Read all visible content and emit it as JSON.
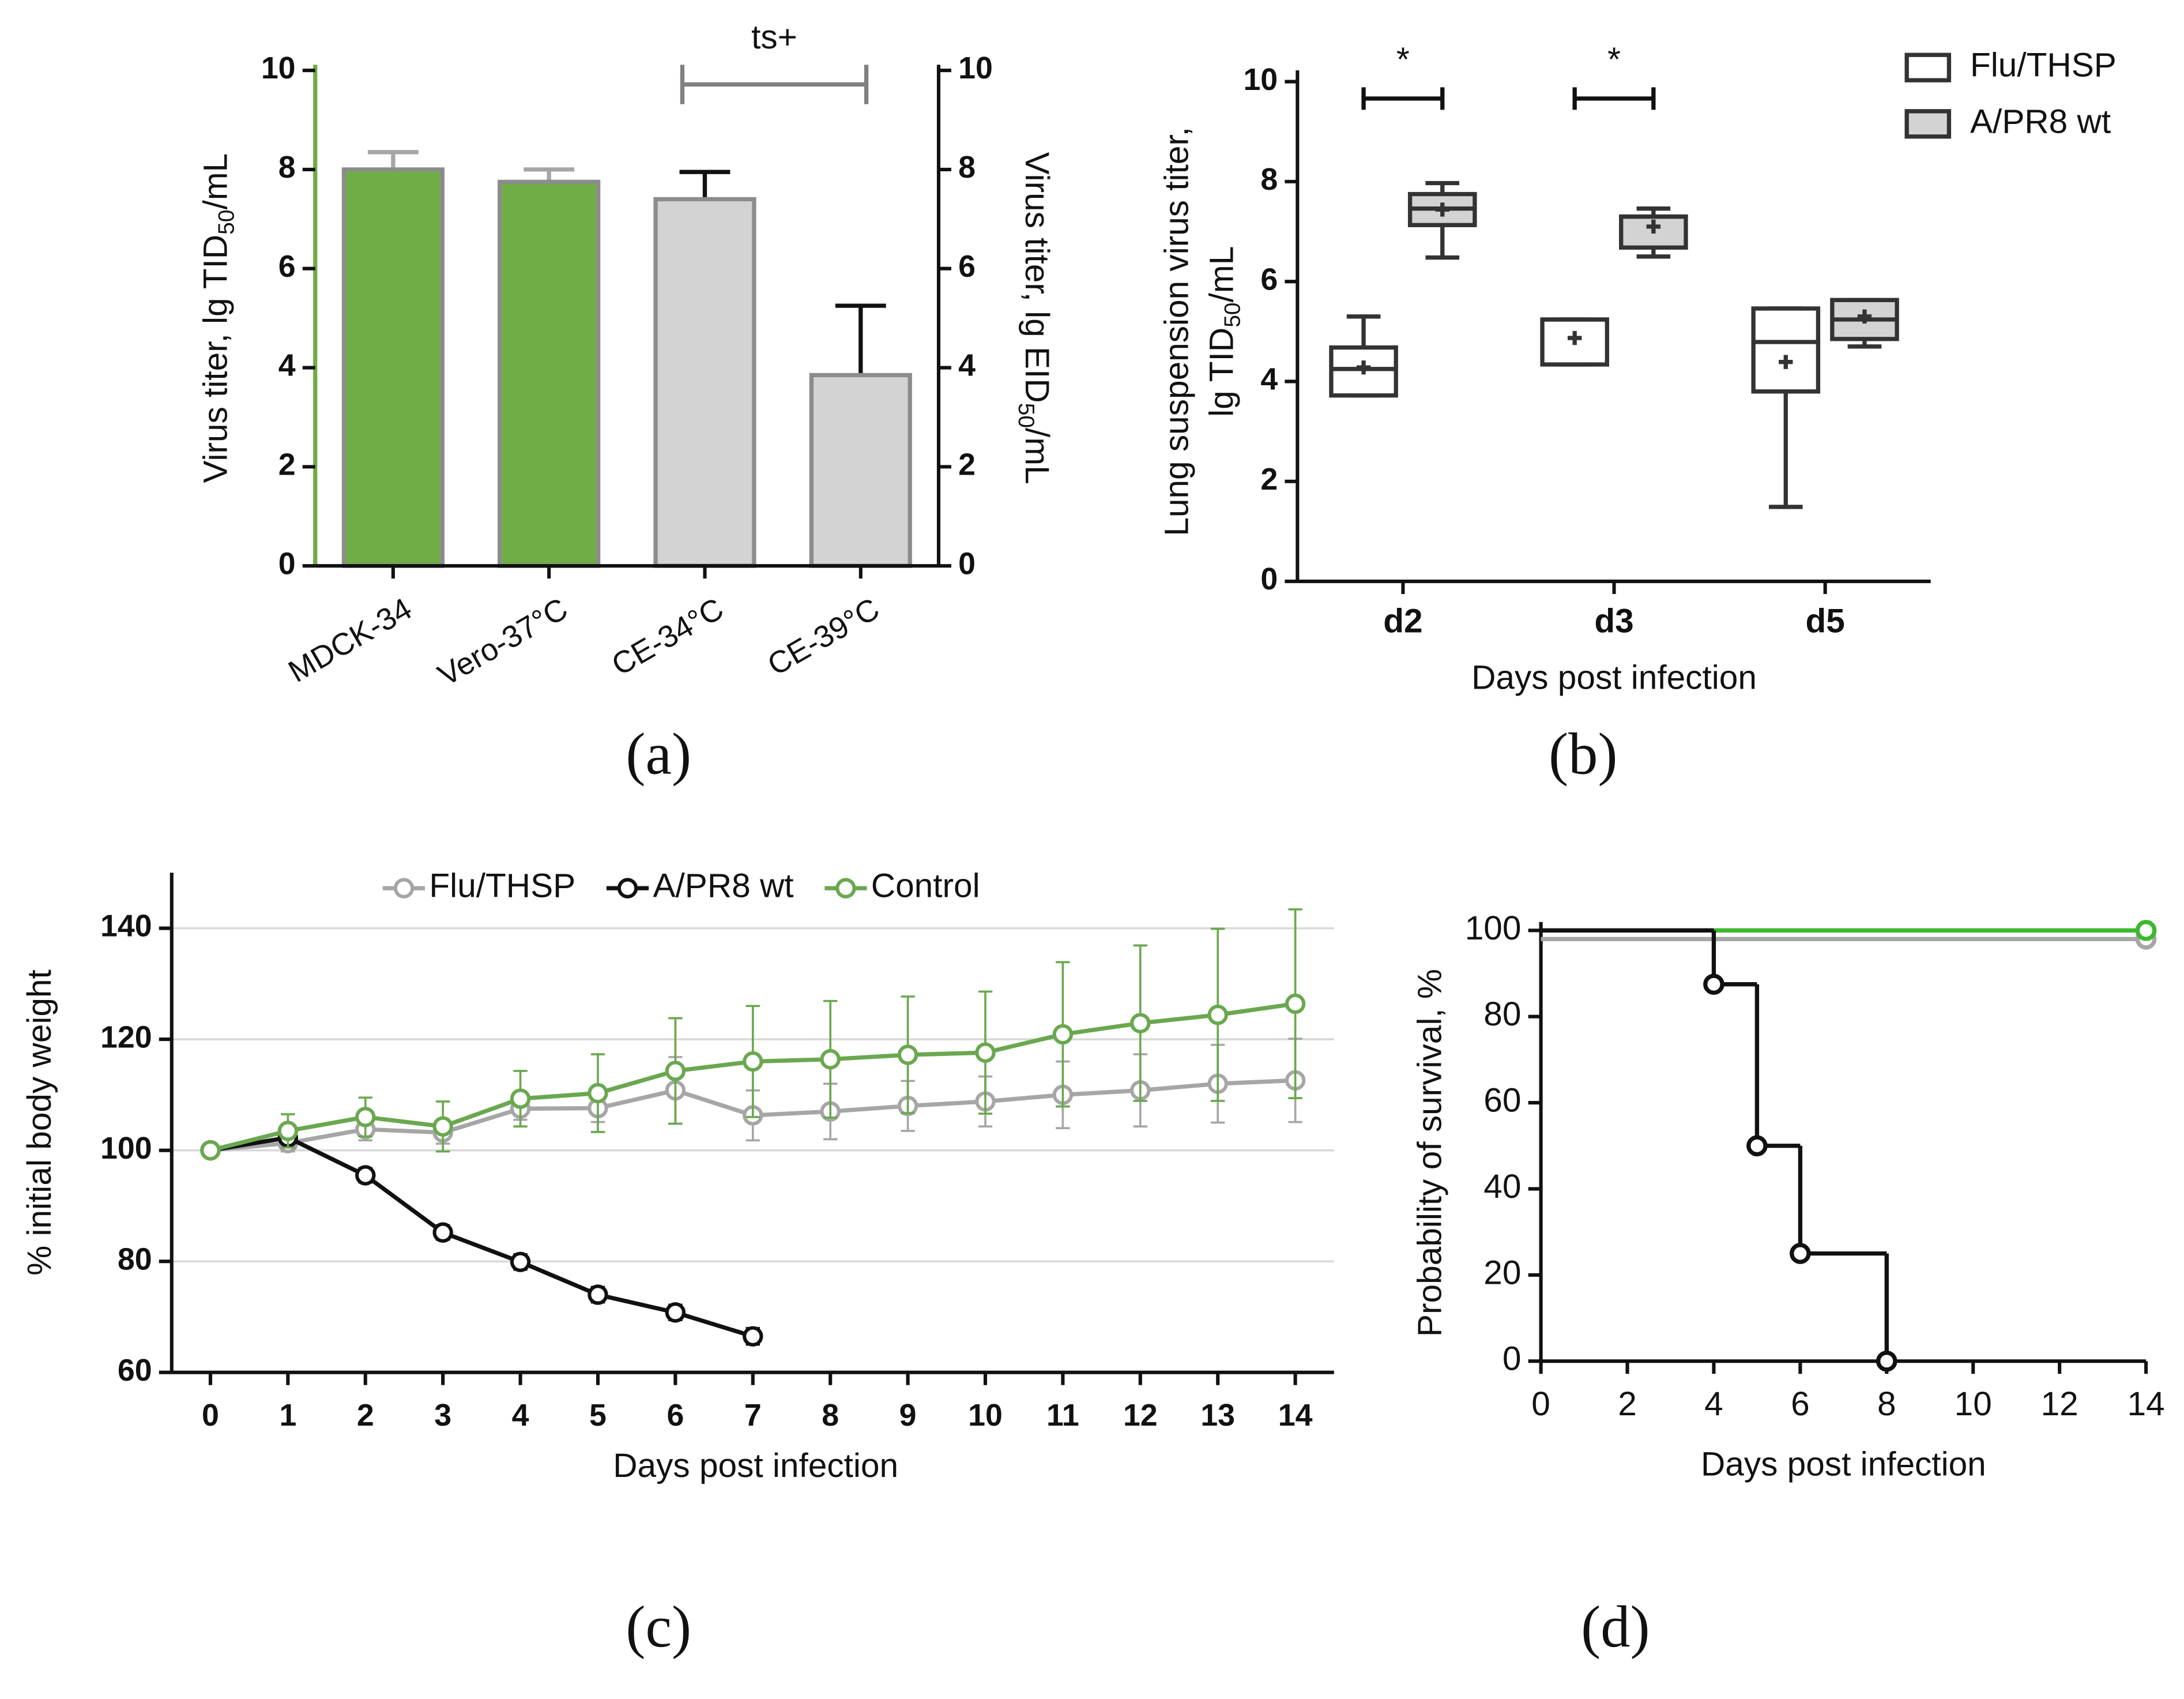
{
  "chart_data": [
    {
      "type": "bar",
      "panel": "(a)",
      "categories": [
        "MDCK-34",
        "Vero-37°C",
        "CE-34°C",
        "CE-39°C"
      ],
      "series": [
        {
          "color": "#70ad47",
          "error_color": "#a6a6a6",
          "axis": "y",
          "values": [
            8.0,
            7.75,
            null,
            null
          ],
          "errors": [
            0.35,
            0.25,
            null,
            null
          ]
        },
        {
          "color": "#d3d3d3",
          "error_color": "#111111",
          "axis": "y2",
          "values": [
            null,
            null,
            7.4,
            3.85
          ],
          "errors": [
            null,
            null,
            0.55,
            1.4
          ]
        }
      ],
      "ylim": [
        0,
        10
      ],
      "yticks": [
        0,
        2,
        4,
        6,
        8,
        10
      ],
      "yaxis_color": "#70ad47",
      "y2lim": [
        0,
        10
      ],
      "y2ticks": [
        0,
        2,
        4,
        6,
        8,
        10
      ],
      "ylabel": [
        [
          "Virus titer, lg TID",
          "50",
          "/mL"
        ]
      ],
      "y2label": [
        [
          "Virus titer, lg EID",
          "50",
          "/mL"
        ]
      ],
      "annotations": [
        {
          "text": "ts+",
          "categories": [
            "CE-34°C",
            "CE-39°C"
          ]
        }
      ]
    },
    {
      "type": "box",
      "panel": "(b)",
      "categories": [
        "d2",
        "d3",
        "d5"
      ],
      "series": [
        {
          "name": "Flu/THSP",
          "color": "#ffffff",
          "min": [
            3.72,
            4.34,
            1.49
          ],
          "q1": [
            3.72,
            4.34,
            3.8
          ],
          "median": [
            4.25,
            5.24,
            4.79
          ],
          "q3": [
            4.68,
            5.24,
            5.46
          ],
          "max": [
            5.3,
            5.24,
            5.46
          ],
          "mean": [
            4.28,
            4.87,
            4.39
          ]
        },
        {
          "name": "A/PR8 wt",
          "color": "#d3d3d3",
          "min": [
            6.48,
            6.5,
            4.7
          ],
          "q1": [
            7.13,
            6.68,
            4.85
          ],
          "median": [
            7.46,
            7.3,
            5.24
          ],
          "q3": [
            7.75,
            7.3,
            5.63
          ],
          "max": [
            7.97,
            7.46,
            5.63
          ],
          "mean": [
            7.44,
            7.1,
            5.3
          ]
        }
      ],
      "ylim": [
        0,
        10
      ],
      "yticks": [
        0,
        2,
        4,
        6,
        8,
        10
      ],
      "ylabel": [
        [
          "Lung suspension virus titer,"
        ],
        [
          "lg TID",
          "50",
          "/mL"
        ]
      ],
      "xlabel": "Days post infection",
      "legend": "upper right",
      "annotations": [
        {
          "text": "*",
          "category": "d2"
        },
        {
          "text": "*",
          "category": "d3"
        }
      ]
    },
    {
      "type": "line",
      "panel": "(c)",
      "x": [
        0,
        1,
        2,
        3,
        4,
        5,
        6,
        7,
        8,
        9,
        10,
        11,
        12,
        13,
        14
      ],
      "series": [
        {
          "name": "Flu/THSP",
          "color": "#a6a6a6",
          "values": [
            100,
            101.3,
            103.8,
            103.2,
            107.5,
            107.6,
            110.8,
            106.3,
            107,
            108,
            108.8,
            110,
            110.8,
            112,
            112.6
          ],
          "errors": [
            0,
            1.5,
            2,
            2,
            2,
            2.5,
            6,
            4.5,
            5,
            4.5,
            4.5,
            6,
            6.5,
            7,
            7.5
          ]
        },
        {
          "name": "A/PR8 wt",
          "color": "#111111",
          "values": [
            100,
            102.3,
            95.5,
            85.2,
            79.9,
            74,
            70.8,
            66.5,
            null,
            null,
            null,
            null,
            null,
            null,
            null
          ],
          "errors": [
            0,
            1,
            1.3,
            1.3,
            1.4,
            1.4,
            1.4,
            1.5,
            null,
            null,
            null,
            null,
            null,
            null,
            null
          ]
        },
        {
          "name": "Control",
          "color": "#6aa84f",
          "values": [
            100,
            103.5,
            106,
            104.3,
            109.3,
            110.3,
            114.3,
            116,
            116.4,
            117.2,
            117.6,
            120.9,
            122.9,
            124.4,
            126.4
          ],
          "errors": [
            0,
            3,
            3.5,
            4.5,
            5,
            7,
            9.5,
            10,
            10.5,
            10.5,
            11,
            13,
            14,
            15.5,
            17
          ]
        }
      ],
      "xlim": [
        -0.5,
        14.5
      ],
      "xticks": [
        0,
        1,
        2,
        3,
        4,
        5,
        6,
        7,
        8,
        9,
        10,
        11,
        12,
        13,
        14
      ],
      "ylim": [
        60,
        150
      ],
      "yticks": [
        60,
        80,
        100,
        120,
        140
      ],
      "grid": true,
      "ylabel": [
        [
          "% initial body weight"
        ]
      ],
      "xlabel": "Days post infection",
      "legend": "upper center"
    },
    {
      "type": "step",
      "panel": "(d)",
      "series": [
        {
          "color": "#a6a6a6",
          "x": [
            0,
            14
          ],
          "values": [
            98,
            98
          ]
        },
        {
          "color": "#3cb82c",
          "x": [
            0,
            14
          ],
          "values": [
            100,
            100
          ]
        },
        {
          "color": "#111111",
          "x": [
            0,
            4,
            5,
            6,
            8
          ],
          "values": [
            100,
            87.5,
            50,
            25,
            0
          ]
        }
      ],
      "xlim": [
        0,
        14
      ],
      "xticks": [
        0,
        2,
        4,
        6,
        8,
        10,
        12,
        14
      ],
      "ylim": [
        0,
        100
      ],
      "yticks": [
        0,
        20,
        40,
        60,
        80,
        100
      ],
      "ylabel": [
        [
          "Probability of survival, %"
        ]
      ],
      "xlabel": "Days post infection"
    }
  ]
}
